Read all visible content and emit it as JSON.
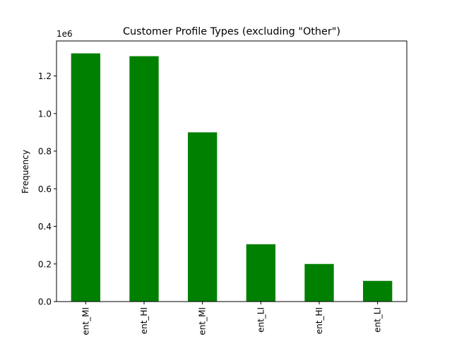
{
  "chart_data": {
    "type": "bar",
    "title": "Customer Profile Types (excluding \"Other\")",
    "xlabel": "",
    "ylabel": "Frequency",
    "offset_label": "1e6",
    "categories": [
      "ent_MI",
      "ent_HI",
      "ent_MI",
      "ent_LI",
      "ent_HI",
      "ent_LI"
    ],
    "values": [
      1320000,
      1305000,
      900000,
      305000,
      200000,
      110000
    ],
    "ylim": [
      0,
      1386000
    ],
    "yticks": [
      0,
      200000,
      400000,
      600000,
      800000,
      1000000,
      1200000
    ],
    "ytick_labels": [
      "0.0",
      "0.2",
      "0.4",
      "0.6",
      "0.8",
      "1.0",
      "1.2"
    ],
    "grid": false,
    "legend": "none",
    "bar_color": "#008000"
  }
}
